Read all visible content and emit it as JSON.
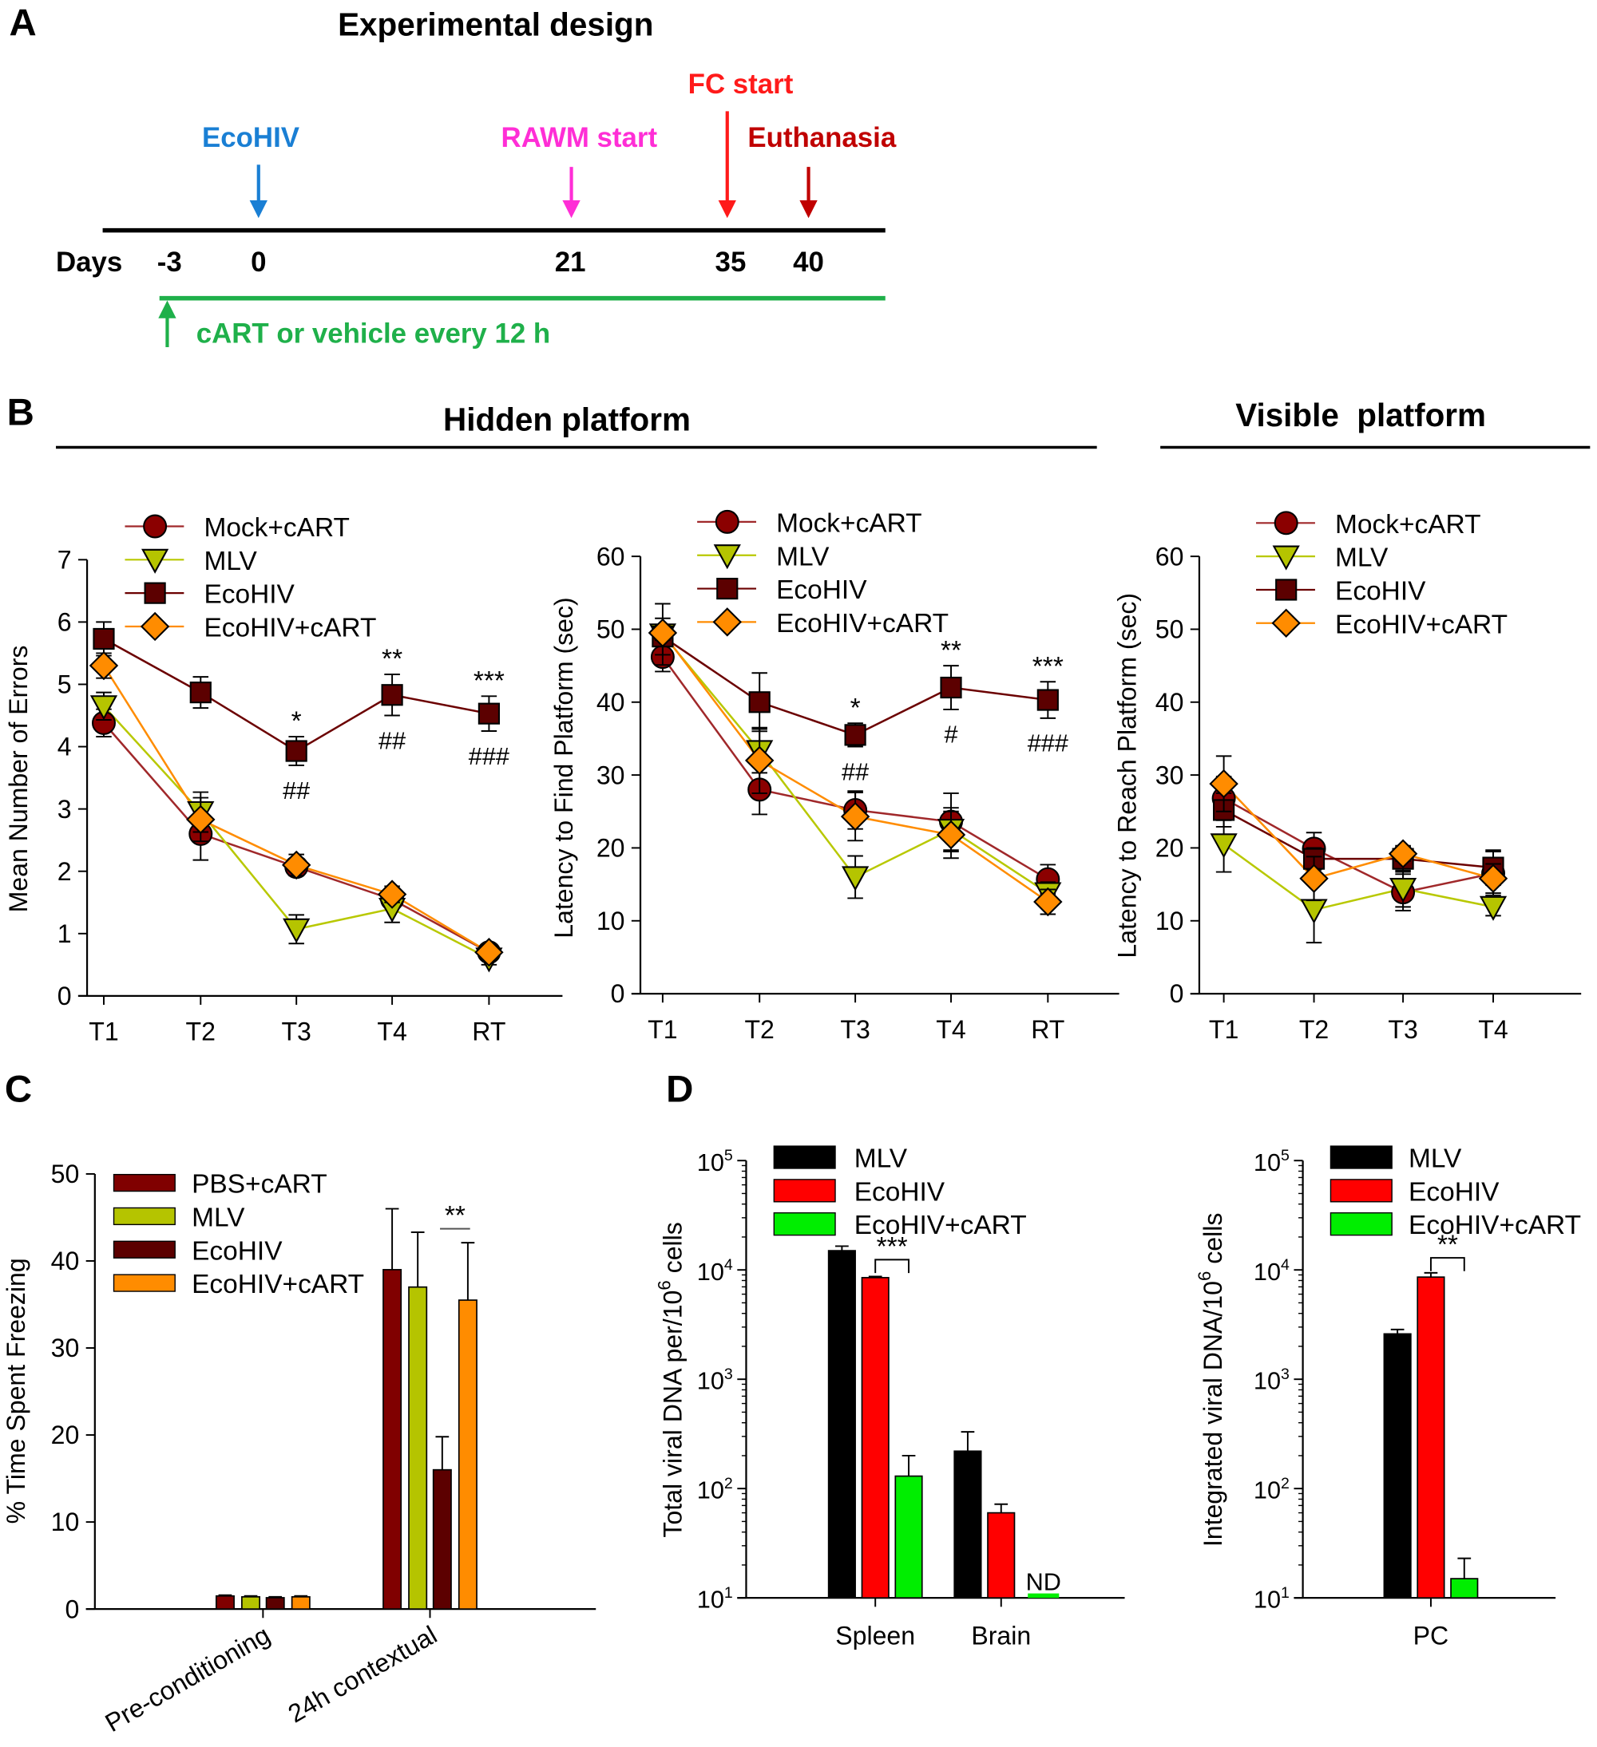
{
  "panel_labels": {
    "a": "A",
    "b": "B",
    "c": "C",
    "d": "D"
  },
  "design": {
    "title": "Experimental design",
    "days_label": "Days",
    "days": [
      "-3",
      "0",
      "21",
      "35",
      "40"
    ],
    "events": [
      {
        "label": "EcoHIV",
        "day": "0",
        "color": "#1a7fd4"
      },
      {
        "label": "RAWM start",
        "day": "21",
        "color": "#ff2ed6"
      },
      {
        "label": "FC start",
        "day": "35",
        "color": "#ff1a1a"
      },
      {
        "label": "Euthanasia",
        "day": "40",
        "color": "#c00000"
      }
    ],
    "treatment": {
      "label": "cART or vehicle every 12 h",
      "start_day": "-3",
      "color": "#1fb04a"
    }
  },
  "section_titles": {
    "hidden": "Hidden platform",
    "visible": "Visible  platform"
  },
  "chart_data": [
    {
      "type": "line",
      "panel": "B",
      "ylabel": "Mean Number of Errors",
      "categories": [
        "T1",
        "T2",
        "T3",
        "T4",
        "RT"
      ],
      "ylim": [
        0,
        7
      ],
      "yticks": [
        0,
        1,
        2,
        3,
        4,
        5,
        6,
        7
      ],
      "legend": "top-left",
      "series": [
        {
          "name": "Mock+cART",
          "marker": "circle",
          "color": "#8b0000",
          "line_color": "#a0282a",
          "values": [
            4.38,
            2.6,
            2.07,
            1.55,
            0.7
          ],
          "errors": [
            0.22,
            0.42,
            0.12,
            0.12,
            0.1
          ]
        },
        {
          "name": "MLV",
          "marker": "triangle-down",
          "color": "#b5c400",
          "line_color": "#b8c800",
          "values": [
            4.65,
            2.95,
            1.07,
            1.4,
            0.6
          ],
          "errors": [
            0.22,
            0.32,
            0.23,
            0.22,
            0.1
          ]
        },
        {
          "name": "EcoHIV",
          "marker": "square",
          "color": "#5c0000",
          "line_color": "#6b0000",
          "values": [
            5.73,
            4.87,
            3.93,
            4.83,
            4.53
          ],
          "errors": [
            0.27,
            0.25,
            0.23,
            0.33,
            0.28
          ]
        },
        {
          "name": "EcoHIV+cART",
          "marker": "diamond",
          "color": "#ff8c00",
          "line_color": "#ff8c00",
          "values": [
            5.3,
            2.83,
            2.1,
            1.63,
            0.7
          ],
          "errors": [
            0.2,
            0.35,
            0.17,
            0.13,
            0.1
          ]
        }
      ],
      "annotations": [
        {
          "category": "T3",
          "above": "*",
          "below": "##"
        },
        {
          "category": "T4",
          "above": "**",
          "below": "##"
        },
        {
          "category": "RT",
          "above": "***",
          "below": "###"
        }
      ]
    },
    {
      "type": "line",
      "panel": "B",
      "ylabel": "Latency to Find Platform (sec)",
      "categories": [
        "T1",
        "T2",
        "T3",
        "T4",
        "RT"
      ],
      "ylim": [
        0,
        60
      ],
      "yticks": [
        0,
        10,
        20,
        30,
        40,
        50,
        60
      ],
      "legend": "top-left",
      "series": [
        {
          "name": "Mock+cART",
          "marker": "circle",
          "color": "#8b0000",
          "line_color": "#a0282a",
          "values": [
            46.2,
            28,
            25.2,
            23.6,
            15.7
          ],
          "errors": [
            2,
            3.4,
            2.6,
            3.9,
            2
          ]
        },
        {
          "name": "MLV",
          "marker": "triangle-down",
          "color": "#b5c400",
          "line_color": "#b8c800",
          "values": [
            49.3,
            33.3,
            16,
            22.5,
            13.8
          ],
          "errors": [
            4.2,
            3,
            2.9,
            3,
            1.5
          ]
        },
        {
          "name": "EcoHIV",
          "marker": "square",
          "color": "#5c0000",
          "line_color": "#6b0000",
          "values": [
            49,
            40,
            35.5,
            42,
            40.3
          ],
          "errors": [
            2.5,
            4,
            1.6,
            3,
            2.5
          ]
        },
        {
          "name": "EcoHIV+cART",
          "marker": "diamond",
          "color": "#ff8c00",
          "line_color": "#ff8c00",
          "values": [
            49.5,
            32,
            24.3,
            21.8,
            12.6
          ],
          "errors": [
            1,
            4.5,
            3.3,
            3.2,
            1.7
          ]
        }
      ],
      "annotations": [
        {
          "category": "T3",
          "above": "*",
          "below": "##"
        },
        {
          "category": "T4",
          "above": "**",
          "below": "#"
        },
        {
          "category": "RT",
          "above": "***",
          "below": "###"
        }
      ]
    },
    {
      "type": "line",
      "panel": "B",
      "ylabel": "Latency to Reach Platform (sec)",
      "categories": [
        "T1",
        "T2",
        "T3",
        "T4"
      ],
      "ylim": [
        0,
        60
      ],
      "yticks": [
        0,
        10,
        20,
        30,
        40,
        50,
        60
      ],
      "legend": "top-left",
      "series": [
        {
          "name": "Mock+cART",
          "marker": "circle",
          "color": "#8b0000",
          "line_color": "#a0282a",
          "values": [
            26.8,
            19.9,
            13.9,
            16.5
          ],
          "errors": [
            3,
            2.2,
            2.5,
            3
          ]
        },
        {
          "name": "MLV",
          "marker": "triangle-down",
          "color": "#b5c400",
          "line_color": "#b8c800",
          "values": [
            20.5,
            11.5,
            14.4,
            11.9
          ],
          "errors": [
            3.8,
            4.5,
            2.5,
            1.2
          ]
        },
        {
          "name": "EcoHIV",
          "marker": "square",
          "color": "#5c0000",
          "line_color": "#6b0000",
          "values": [
            25.2,
            18.5,
            18.5,
            17.3
          ],
          "errors": [
            2.3,
            1.5,
            1.8,
            2.4
          ]
        },
        {
          "name": "EcoHIV+cART",
          "marker": "diamond",
          "color": "#ff8c00",
          "line_color": "#ff8c00",
          "values": [
            28.8,
            15.8,
            19.2,
            15.8
          ],
          "errors": [
            3.8,
            3,
            1,
            2
          ]
        }
      ],
      "annotations": []
    },
    {
      "type": "bar",
      "panel": "C",
      "ylabel": "% Time Spent Freezing",
      "categories": [
        "Pre-conditioning",
        "24h contextual"
      ],
      "ylim": [
        0,
        50
      ],
      "yticks": [
        0,
        10,
        20,
        30,
        40,
        50
      ],
      "legend": "top-left",
      "series": [
        {
          "name": "PBS+cART",
          "color": "#800000",
          "values": [
            1.5,
            39
          ],
          "errors": [
            0.1,
            7
          ]
        },
        {
          "name": "MLV",
          "color": "#b5c400",
          "values": [
            1.4,
            37
          ],
          "errors": [
            0.1,
            6.3
          ]
        },
        {
          "name": "EcoHIV",
          "color": "#5c0000",
          "values": [
            1.3,
            16
          ],
          "errors": [
            0.1,
            3.8
          ]
        },
        {
          "name": "EcoHIV+cART",
          "color": "#ff8c00",
          "values": [
            1.4,
            35.5
          ],
          "errors": [
            0.1,
            6.6
          ]
        }
      ],
      "annotations": [
        {
          "category": "24h contextual",
          "between": [
            "EcoHIV",
            "EcoHIV+cART"
          ],
          "label": "**",
          "level": 43.7
        }
      ]
    },
    {
      "type": "bar",
      "panel": "D",
      "scale": "log",
      "ylabel": [
        "Total viral DNA per/10",
        "6",
        " cells"
      ],
      "categories": [
        "Spleen",
        "Brain"
      ],
      "ylim": [
        10,
        100000
      ],
      "yticks": [
        10,
        100,
        1000,
        10000,
        100000
      ],
      "tick_base": "10",
      "legend": "top-left",
      "series": [
        {
          "name": "MLV",
          "color": "#000000",
          "values": [
            15000,
            220
          ],
          "errors": [
            1500,
            110
          ]
        },
        {
          "name": "EcoHIV",
          "color": "#ff0000",
          "values": [
            8500,
            60
          ],
          "errors": [
            200,
            12
          ]
        },
        {
          "name": "EcoHIV+cART",
          "color": "#00ee00",
          "values": [
            130,
            null
          ],
          "errors": [
            70,
            null
          ]
        }
      ],
      "nd_label": "ND",
      "annotations": [
        {
          "category": "Spleen",
          "between": [
            "EcoHIV",
            "EcoHIV+cART"
          ],
          "label": "***",
          "level": 12400
        }
      ]
    },
    {
      "type": "bar",
      "panel": "D",
      "scale": "log",
      "ylabel": [
        "Integrated viral DNA/10",
        "6",
        " cells"
      ],
      "categories": [
        "PC"
      ],
      "ylim": [
        10,
        100000
      ],
      "yticks": [
        10,
        100,
        1000,
        10000,
        100000
      ],
      "tick_base": "10",
      "legend": "top-left",
      "series": [
        {
          "name": "MLV",
          "color": "#000000",
          "values": [
            2600
          ],
          "errors": [
            250
          ]
        },
        {
          "name": "EcoHIV",
          "color": "#ff0000",
          "values": [
            8600
          ],
          "errors": [
            800
          ]
        },
        {
          "name": "EcoHIV+cART",
          "color": "#00ee00",
          "values": [
            15
          ],
          "errors": [
            8
          ]
        }
      ],
      "annotations": [
        {
          "category": "PC",
          "between": [
            "EcoHIV",
            "EcoHIV+cART"
          ],
          "label": "**",
          "level": 12900
        }
      ]
    }
  ]
}
